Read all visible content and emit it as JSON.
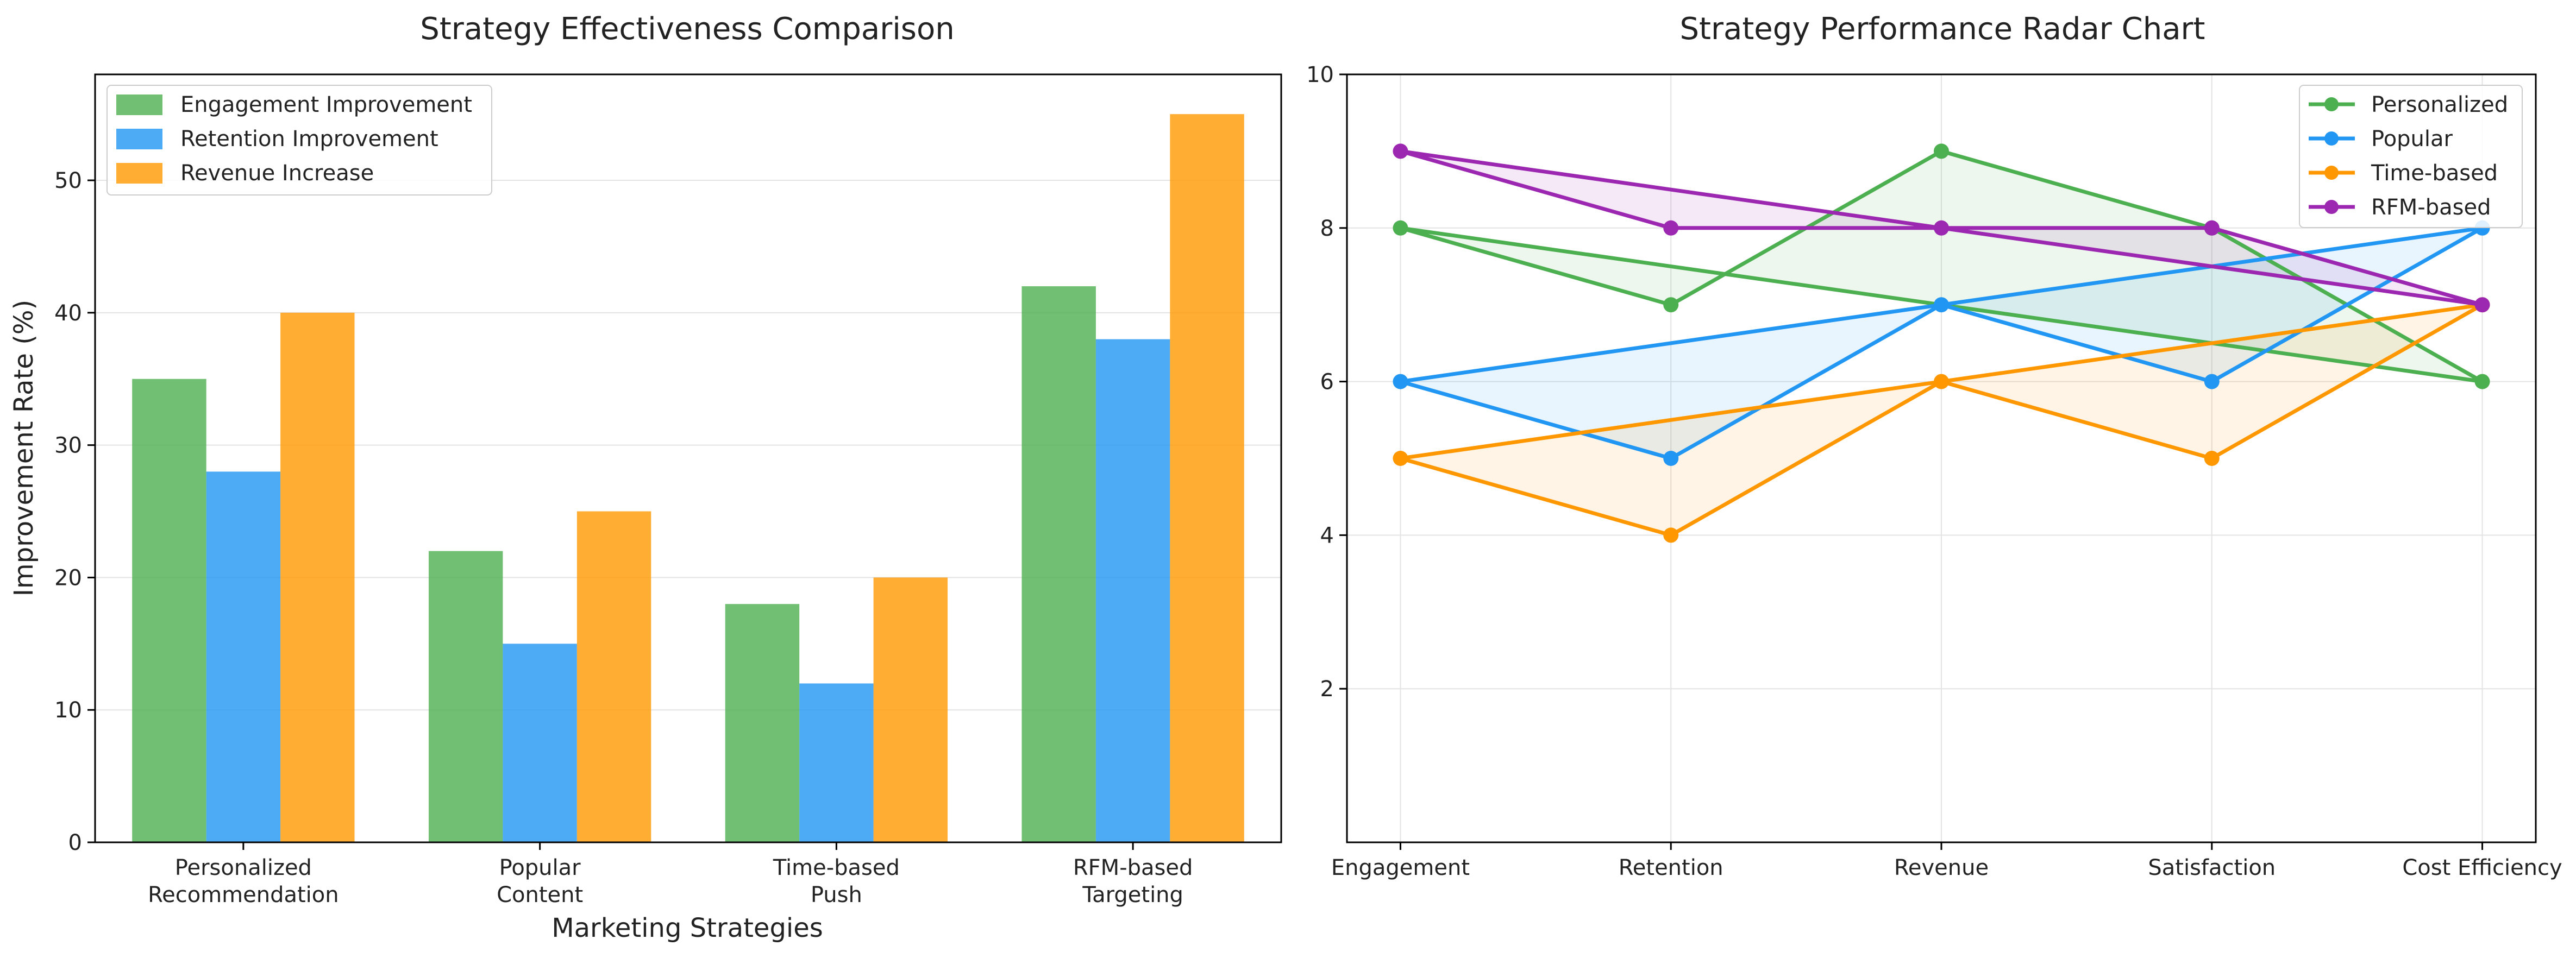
{
  "chart_data": [
    {
      "type": "bar",
      "title": "Strategy Effectiveness Comparison",
      "xlabel": "Marketing Strategies",
      "ylabel": "Improvement Rate (%)",
      "categories": [
        [
          "Personalized",
          "Recommendation"
        ],
        [
          "Popular",
          "Content"
        ],
        [
          "Time-based",
          "Push"
        ],
        [
          "RFM-based",
          "Targeting"
        ]
      ],
      "series": [
        {
          "name": "Engagement Improvement",
          "color": "#4CAF50",
          "values": [
            35,
            22,
            18,
            42
          ]
        },
        {
          "name": "Retention Improvement",
          "color": "#2196F3",
          "values": [
            28,
            15,
            12,
            38
          ]
        },
        {
          "name": "Revenue Increase",
          "color": "#FF9800",
          "values": [
            40,
            25,
            20,
            55
          ]
        }
      ],
      "ylim": [
        0,
        58
      ],
      "yticks": [
        0,
        10,
        20,
        30,
        40,
        50
      ],
      "grid": true,
      "legend_position": "top-left"
    },
    {
      "type": "line",
      "title": "Strategy Performance Radar Chart",
      "categories": [
        "Engagement",
        "Retention",
        "Revenue",
        "Satisfaction",
        "Cost Efficiency"
      ],
      "series": [
        {
          "name": "Personalized",
          "color": "#4CAF50",
          "values": [
            8,
            7,
            9,
            8,
            6
          ]
        },
        {
          "name": "Popular",
          "color": "#2196F3",
          "values": [
            6,
            5,
            7,
            6,
            8
          ]
        },
        {
          "name": "Time-based",
          "color": "#FF9800",
          "values": [
            5,
            4,
            6,
            5,
            7
          ]
        },
        {
          "name": "RFM-based",
          "color": "#9C27B0",
          "values": [
            9,
            8,
            8,
            8,
            7
          ]
        }
      ],
      "ylim": [
        0,
        10
      ],
      "yticks": [
        2,
        4,
        6,
        8,
        10
      ],
      "grid": true,
      "filled": true,
      "closed_loop": true,
      "legend_position": "top-right"
    }
  ]
}
